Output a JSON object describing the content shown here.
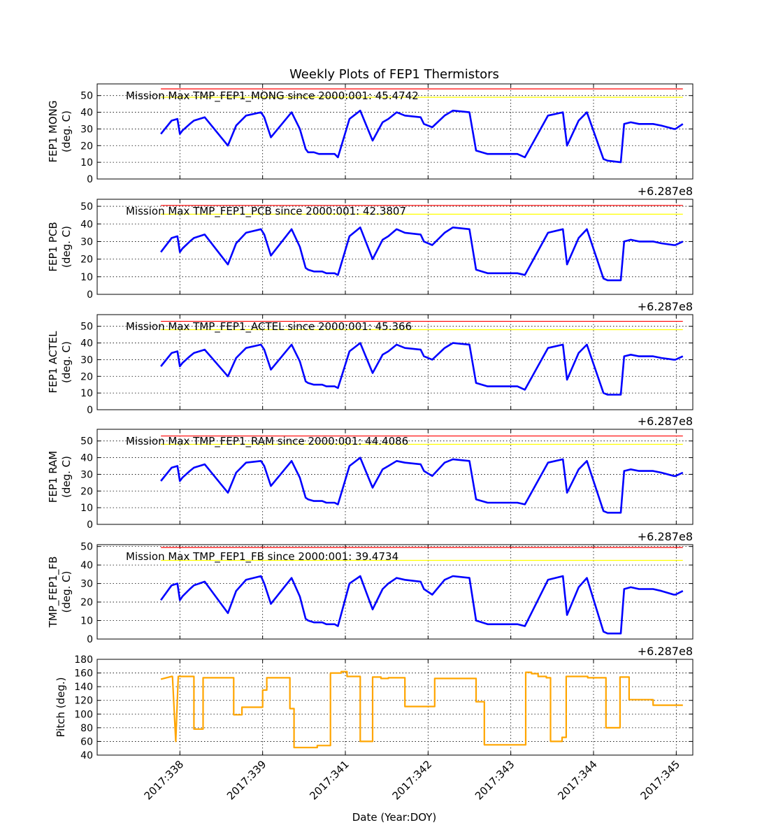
{
  "figure": {
    "title": "Weekly Plots of FEP1 Thermistors",
    "xlabel": "Date (Year:DOY)",
    "offset_label": "+6.287e8",
    "date_ticks": [
      {
        "label": "2017:338",
        "value": 0.0
      },
      {
        "label": "2017:339",
        "value": 1.0
      },
      {
        "label": "2017:341",
        "value": 2.0
      },
      {
        "label": "2017:342",
        "value": 3.0
      },
      {
        "label": "2017:343",
        "value": 4.0
      },
      {
        "label": "2017:344",
        "value": 5.0
      },
      {
        "label": "2017:345",
        "value": 6.0
      }
    ]
  },
  "colors": {
    "series": "#0000ff",
    "pitch": "#ffa500",
    "limit_high": "#ff0000",
    "limit_warn": "#ffff00",
    "grid": "#000000"
  },
  "chart_data": [
    {
      "type": "line",
      "ylabel_line1": "FEP1 MONG",
      "ylabel_line2": "(deg. C)",
      "annotation": "Mission Max TMP_FEP1_MONG since 2000:001: 45.4742",
      "yticks": [
        "0",
        "10",
        "20",
        "30",
        "40",
        "50"
      ],
      "ylim": [
        0,
        57
      ],
      "hlines": [
        {
          "y": 54,
          "color": "red"
        },
        {
          "y": 49,
          "color": "yellow"
        }
      ],
      "x": [
        -0.23,
        -0.1,
        -0.03,
        0.0,
        0.03,
        0.12,
        0.17,
        0.3,
        0.58,
        0.68,
        0.8,
        0.98,
        1.02,
        1.1,
        1.35,
        1.45,
        1.52,
        1.55,
        1.62,
        1.68,
        1.72,
        1.77,
        1.87,
        1.91,
        2.05,
        2.18,
        2.33,
        2.45,
        2.52,
        2.62,
        2.72,
        2.91,
        2.95,
        3.05,
        3.2,
        3.3,
        3.5,
        3.58,
        3.72,
        3.98,
        4.02,
        4.08,
        4.17,
        4.45,
        4.63,
        4.68,
        4.82,
        4.92,
        5.12,
        5.17,
        5.33,
        5.37,
        5.45,
        5.55,
        5.72,
        5.82,
        5.97,
        5.99,
        6.08
      ],
      "values": [
        27,
        35,
        36,
        27,
        29,
        33,
        35,
        37,
        20,
        32,
        38,
        40,
        37,
        25,
        40,
        30,
        18,
        16,
        16,
        15,
        15,
        15,
        15,
        13,
        36,
        41,
        23,
        34,
        36,
        40,
        38,
        37,
        33,
        31,
        38,
        41,
        40,
        17,
        15,
        15,
        15,
        15,
        13,
        38,
        40,
        20,
        35,
        40,
        12,
        11,
        10,
        33,
        34,
        33,
        33,
        32,
        30,
        30,
        33
      ]
    },
    {
      "type": "line",
      "ylabel_line1": "FEP1 PCB",
      "ylabel_line2": "(deg. C)",
      "annotation": "Mission Max TMP_FEP1_PCB since 2000:001: 42.3807",
      "yticks": [
        "0",
        "10",
        "20",
        "30",
        "40",
        "50"
      ],
      "ylim": [
        0,
        54
      ],
      "hlines": [
        {
          "y": 50.5,
          "color": "red"
        },
        {
          "y": 45.5,
          "color": "yellow"
        }
      ],
      "x": [
        -0.23,
        -0.1,
        -0.03,
        0.0,
        0.03,
        0.12,
        0.17,
        0.3,
        0.58,
        0.68,
        0.8,
        0.98,
        1.02,
        1.1,
        1.35,
        1.45,
        1.52,
        1.55,
        1.62,
        1.68,
        1.72,
        1.77,
        1.87,
        1.91,
        2.05,
        2.18,
        2.33,
        2.45,
        2.52,
        2.62,
        2.72,
        2.91,
        2.95,
        3.05,
        3.2,
        3.3,
        3.5,
        3.58,
        3.72,
        3.98,
        4.02,
        4.08,
        4.17,
        4.45,
        4.63,
        4.68,
        4.82,
        4.92,
        5.12,
        5.17,
        5.33,
        5.37,
        5.45,
        5.55,
        5.72,
        5.82,
        5.97,
        5.99,
        6.08
      ],
      "values": [
        24,
        32,
        33,
        24,
        26,
        30,
        32,
        34,
        17,
        29,
        35,
        37,
        34,
        22,
        37,
        27,
        15,
        14,
        13,
        13,
        13,
        12,
        12,
        11,
        33,
        38,
        20,
        31,
        33,
        37,
        35,
        34,
        30,
        28,
        35,
        38,
        37,
        14,
        12,
        12,
        12,
        12,
        11,
        35,
        37,
        17,
        32,
        37,
        9,
        8,
        8,
        30,
        31,
        30,
        30,
        29,
        28,
        28,
        30
      ]
    },
    {
      "type": "line",
      "ylabel_line1": "FEP1 ACTEL",
      "ylabel_line2": "(deg. C)",
      "annotation": "Mission Max TMP_FEP1_ACTEL since 2000:001: 45.366",
      "yticks": [
        "0",
        "10",
        "20",
        "30",
        "40",
        "50"
      ],
      "ylim": [
        0,
        57
      ],
      "hlines": [
        {
          "y": 53,
          "color": "red"
        },
        {
          "y": 48,
          "color": "yellow"
        }
      ],
      "x": [
        -0.23,
        -0.1,
        -0.03,
        0.0,
        0.03,
        0.12,
        0.17,
        0.3,
        0.58,
        0.68,
        0.8,
        0.98,
        1.02,
        1.1,
        1.35,
        1.45,
        1.52,
        1.55,
        1.62,
        1.68,
        1.72,
        1.77,
        1.87,
        1.91,
        2.05,
        2.18,
        2.33,
        2.45,
        2.52,
        2.62,
        2.72,
        2.91,
        2.95,
        3.05,
        3.2,
        3.3,
        3.5,
        3.58,
        3.72,
        3.98,
        4.02,
        4.08,
        4.17,
        4.45,
        4.63,
        4.68,
        4.82,
        4.92,
        5.12,
        5.17,
        5.33,
        5.37,
        5.45,
        5.55,
        5.72,
        5.82,
        5.97,
        5.99,
        6.08
      ],
      "values": [
        26,
        34,
        35,
        26,
        28,
        32,
        34,
        36,
        20,
        31,
        37,
        39,
        36,
        24,
        39,
        29,
        17,
        16,
        15,
        15,
        15,
        14,
        14,
        13,
        35,
        40,
        22,
        33,
        35,
        39,
        37,
        36,
        32,
        30,
        37,
        40,
        39,
        16,
        14,
        14,
        14,
        14,
        12,
        37,
        39,
        18,
        34,
        39,
        10,
        9,
        9,
        32,
        33,
        32,
        32,
        31,
        30,
        30,
        32
      ]
    },
    {
      "type": "line",
      "ylabel_line1": "FEP1 RAM",
      "ylabel_line2": "(deg. C)",
      "annotation": "Mission Max TMP_FEP1_RAM since 2000:001: 44.4086",
      "yticks": [
        "0",
        "10",
        "20",
        "30",
        "40",
        "50"
      ],
      "ylim": [
        0,
        57
      ],
      "hlines": [
        {
          "y": 53,
          "color": "red"
        },
        {
          "y": 48,
          "color": "yellow"
        }
      ],
      "x": [
        -0.23,
        -0.1,
        -0.03,
        0.0,
        0.03,
        0.12,
        0.17,
        0.3,
        0.58,
        0.68,
        0.8,
        0.98,
        1.02,
        1.1,
        1.35,
        1.45,
        1.52,
        1.55,
        1.62,
        1.68,
        1.72,
        1.77,
        1.87,
        1.91,
        2.05,
        2.18,
        2.33,
        2.45,
        2.52,
        2.62,
        2.72,
        2.91,
        2.95,
        3.05,
        3.2,
        3.3,
        3.5,
        3.58,
        3.72,
        3.98,
        4.02,
        4.08,
        4.17,
        4.45,
        4.63,
        4.68,
        4.82,
        4.92,
        5.12,
        5.17,
        5.33,
        5.37,
        5.45,
        5.55,
        5.72,
        5.82,
        5.97,
        5.99,
        6.08
      ],
      "values": [
        26,
        34,
        35,
        26,
        28,
        32,
        34,
        36,
        19,
        31,
        37,
        38,
        35,
        23,
        38,
        28,
        16,
        15,
        14,
        14,
        14,
        13,
        13,
        12,
        35,
        40,
        22,
        33,
        35,
        38,
        37,
        36,
        32,
        29,
        37,
        39,
        38,
        15,
        13,
        13,
        13,
        13,
        12,
        37,
        39,
        19,
        33,
        38,
        8,
        7,
        7,
        32,
        33,
        32,
        32,
        31,
        29,
        29,
        31
      ]
    },
    {
      "type": "line",
      "ylabel_line1": "TMP_FEP1_FB",
      "ylabel_line2": "(deg. C)",
      "annotation": "Mission Max TMP_FEP1_FB since 2000:001: 39.4734",
      "yticks": [
        "0",
        "10",
        "20",
        "30",
        "40",
        "50"
      ],
      "ylim": [
        0,
        51
      ],
      "hlines": [
        {
          "y": 49.5,
          "color": "red"
        },
        {
          "y": 42.5,
          "color": "yellow"
        }
      ],
      "x": [
        -0.23,
        -0.1,
        -0.03,
        0.0,
        0.03,
        0.12,
        0.17,
        0.3,
        0.58,
        0.68,
        0.8,
        0.98,
        1.02,
        1.1,
        1.35,
        1.45,
        1.52,
        1.55,
        1.62,
        1.68,
        1.72,
        1.77,
        1.87,
        1.91,
        2.05,
        2.18,
        2.33,
        2.45,
        2.52,
        2.62,
        2.72,
        2.91,
        2.95,
        3.05,
        3.2,
        3.3,
        3.5,
        3.58,
        3.72,
        3.98,
        4.02,
        4.08,
        4.17,
        4.45,
        4.63,
        4.68,
        4.82,
        4.92,
        5.12,
        5.17,
        5.33,
        5.37,
        5.45,
        5.55,
        5.72,
        5.82,
        5.97,
        5.99,
        6.08
      ],
      "values": [
        21,
        29,
        30,
        21,
        23,
        27,
        29,
        31,
        14,
        26,
        32,
        34,
        30,
        19,
        33,
        23,
        11,
        10,
        9,
        9,
        9,
        8,
        8,
        7,
        30,
        34,
        16,
        27,
        30,
        33,
        32,
        31,
        27,
        24,
        32,
        34,
        33,
        10,
        8,
        8,
        8,
        8,
        7,
        32,
        34,
        13,
        28,
        33,
        4,
        3,
        3,
        27,
        28,
        27,
        27,
        26,
        24,
        24,
        26
      ]
    },
    {
      "type": "line",
      "ylabel_line1": "Pitch (deg.)",
      "ylabel_line2": "",
      "annotation": "",
      "yticks": [
        "40",
        "60",
        "80",
        "100",
        "120",
        "140",
        "160",
        "180"
      ],
      "ylim": [
        40,
        180
      ],
      "hlines": [],
      "x": [
        -0.23,
        -0.1,
        -0.09,
        -0.05,
        -0.05,
        -0.02,
        -0.02,
        0.17,
        0.17,
        0.28,
        0.28,
        0.65,
        0.65,
        0.75,
        0.75,
        1.0,
        1.0,
        1.05,
        1.05,
        1.33,
        1.33,
        1.38,
        1.38,
        1.66,
        1.66,
        1.82,
        1.82,
        1.95,
        1.95,
        2.02,
        2.02,
        2.18,
        2.18,
        2.33,
        2.33,
        2.43,
        2.43,
        2.52,
        2.52,
        2.72,
        2.72,
        3.08,
        3.08,
        3.58,
        3.58,
        3.68,
        3.68,
        4.18,
        4.18,
        4.25,
        4.25,
        4.33,
        4.33,
        4.43,
        4.43,
        4.48,
        4.48,
        4.62,
        4.62,
        4.67,
        4.67,
        4.93,
        4.93,
        5.15,
        5.15,
        5.32,
        5.32,
        5.43,
        5.43,
        5.72,
        5.72,
        6.08
      ],
      "values": [
        151,
        155,
        155,
        60,
        60,
        155,
        155,
        155,
        78,
        78,
        153,
        153,
        99,
        99,
        110,
        110,
        135,
        135,
        153,
        153,
        108,
        108,
        51,
        51,
        54,
        54,
        160,
        160,
        162,
        162,
        155,
        155,
        60,
        60,
        154,
        154,
        152,
        152,
        153,
        153,
        111,
        111,
        152,
        152,
        118,
        118,
        55,
        55,
        161,
        161,
        159,
        159,
        155,
        155,
        153,
        153,
        60,
        60,
        66,
        66,
        155,
        155,
        153,
        153,
        80,
        80,
        154,
        154,
        121,
        121,
        113,
        113
      ]
    }
  ]
}
